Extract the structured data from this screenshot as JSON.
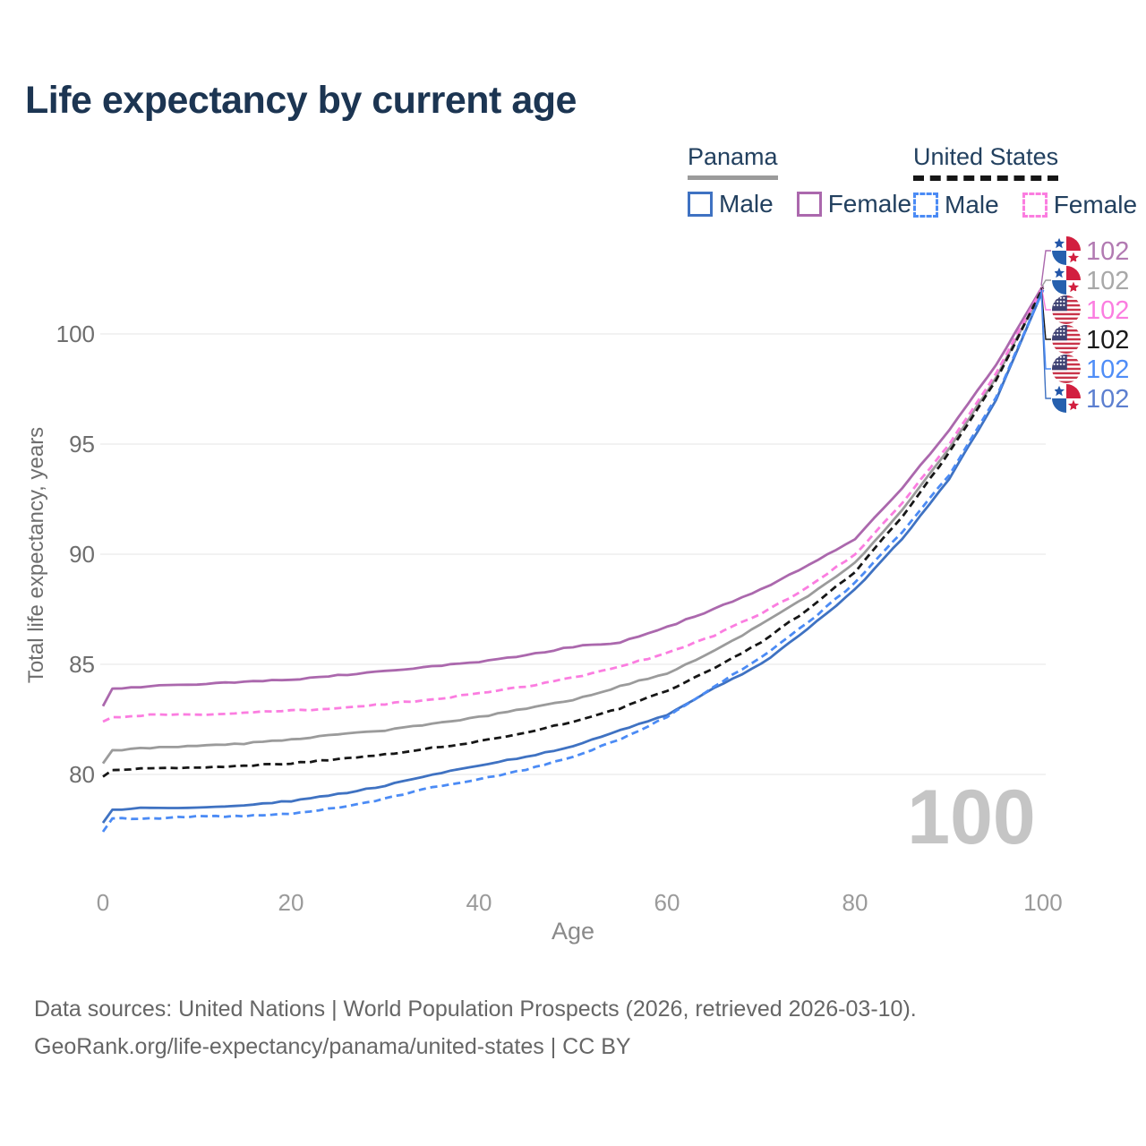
{
  "title": "Life expectancy by current age",
  "legend": {
    "groups": [
      {
        "name": "Panama",
        "line_style": "solid",
        "underline_color": "#9b9b9b",
        "items": [
          {
            "label": "Male",
            "swatch_color": "#3f72c2",
            "dashed": false
          },
          {
            "label": "Female",
            "swatch_color": "#ab68ad",
            "dashed": false
          }
        ]
      },
      {
        "name": "United States",
        "line_style": "dashed",
        "underline_color": "#161616",
        "items": [
          {
            "label": "Male",
            "swatch_color": "#4b8bf5",
            "dashed": true
          },
          {
            "label": "Female",
            "swatch_color": "#fb7de0",
            "dashed": true
          }
        ]
      }
    ]
  },
  "watermark": {
    "age_display": "100"
  },
  "footer": {
    "line1": "Data sources: United Nations | World Population Prospects (2026, retrieved 2026-03-10).",
    "line2": "GeoRank.org/life-expectancy/panama/united-states | CC BY"
  },
  "flag_colors": {
    "panama_red": "#d21f3f",
    "panama_blue": "#2660ae",
    "panama_star_blue": "#2356a8",
    "panama_star_red": "#d21f3f",
    "us_red": "#c9344a",
    "us_canton_blue": "#3f4273"
  },
  "chart_data": {
    "type": "line",
    "title": "Life expectancy by current age",
    "xlabel": "Age",
    "ylabel": "Total life expectancy, years",
    "x_ticks": [
      0,
      20,
      40,
      60,
      80,
      100
    ],
    "y_ticks": [
      80,
      85,
      90,
      95,
      100
    ],
    "xlim": [
      0,
      100
    ],
    "ylim": [
      77,
      103.5
    ],
    "grid": "horizontal",
    "legend_position": "top-right",
    "ages": [
      0,
      1,
      5,
      10,
      15,
      20,
      25,
      30,
      35,
      40,
      45,
      50,
      55,
      60,
      65,
      70,
      75,
      80,
      85,
      90,
      95,
      100
    ],
    "series": [
      {
        "name": "Panama Female",
        "country": "Panama",
        "sex": "Female",
        "flag": "panama",
        "color": "#ab68ad",
        "label_color": "#b27ab2",
        "dash": false,
        "end_label": "102",
        "label_row": 0,
        "values": [
          83.1,
          83.9,
          84.0,
          84.1,
          84.2,
          84.3,
          84.5,
          84.7,
          84.9,
          85.1,
          85.4,
          85.8,
          86.0,
          86.7,
          87.5,
          88.4,
          89.5,
          90.7,
          93.0,
          95.6,
          98.6,
          102.2
        ]
      },
      {
        "name": "Panama Total",
        "country": "Panama",
        "sex": "Both",
        "flag": "panama",
        "color": "#9b9b9b",
        "label_color": "#a8a8a8",
        "dash": false,
        "end_label": "102",
        "label_row": 1,
        "values": [
          80.5,
          81.1,
          81.2,
          81.3,
          81.4,
          81.6,
          81.8,
          82.0,
          82.3,
          82.6,
          83.0,
          83.4,
          84.0,
          84.6,
          85.6,
          86.8,
          88.1,
          89.6,
          92.0,
          94.8,
          98.0,
          102.1
        ]
      },
      {
        "name": "United States Female",
        "country": "United States",
        "sex": "Female",
        "flag": "us",
        "color": "#fb7de0",
        "label_color": "#fb7de0",
        "dash": true,
        "end_label": "102",
        "label_row": 2,
        "values": [
          82.4,
          82.6,
          82.7,
          82.7,
          82.8,
          82.9,
          83.0,
          83.2,
          83.4,
          83.7,
          84.0,
          84.4,
          84.9,
          85.5,
          86.3,
          87.3,
          88.5,
          90.0,
          92.3,
          95.0,
          98.2,
          102.15
        ]
      },
      {
        "name": "United States Total",
        "country": "United States",
        "sex": "Both",
        "flag": "us",
        "color": "#161616",
        "label_color": "#1a1a1a",
        "dash": true,
        "end_label": "102",
        "label_row": 3,
        "values": [
          79.9,
          80.2,
          80.3,
          80.3,
          80.4,
          80.5,
          80.7,
          80.9,
          81.2,
          81.5,
          81.9,
          82.4,
          83.0,
          83.8,
          84.8,
          86.0,
          87.5,
          89.2,
          91.7,
          94.6,
          97.9,
          102.1
        ]
      },
      {
        "name": "Panama Male",
        "country": "Panama",
        "sex": "Male",
        "flag": "panama",
        "color": "#3f72c2",
        "label_color": "#5c7fd0",
        "dash": false,
        "end_label": "102",
        "label_row": 5,
        "values": [
          77.8,
          78.4,
          78.5,
          78.5,
          78.6,
          78.8,
          79.1,
          79.5,
          80.0,
          80.4,
          80.8,
          81.3,
          82.0,
          82.7,
          83.9,
          85.0,
          86.6,
          88.4,
          90.7,
          93.4,
          97.0,
          102.0
        ]
      },
      {
        "name": "United States Male",
        "country": "United States",
        "sex": "Male",
        "flag": "us",
        "color": "#4b8bf5",
        "label_color": "#4f8df7",
        "dash": true,
        "end_label": "102",
        "label_row": 4,
        "values": [
          77.4,
          78.0,
          78.0,
          78.1,
          78.1,
          78.2,
          78.5,
          78.9,
          79.4,
          79.8,
          80.2,
          80.8,
          81.6,
          82.6,
          84.0,
          85.3,
          86.9,
          88.7,
          91.0,
          93.6,
          97.1,
          102.0
        ]
      }
    ]
  }
}
